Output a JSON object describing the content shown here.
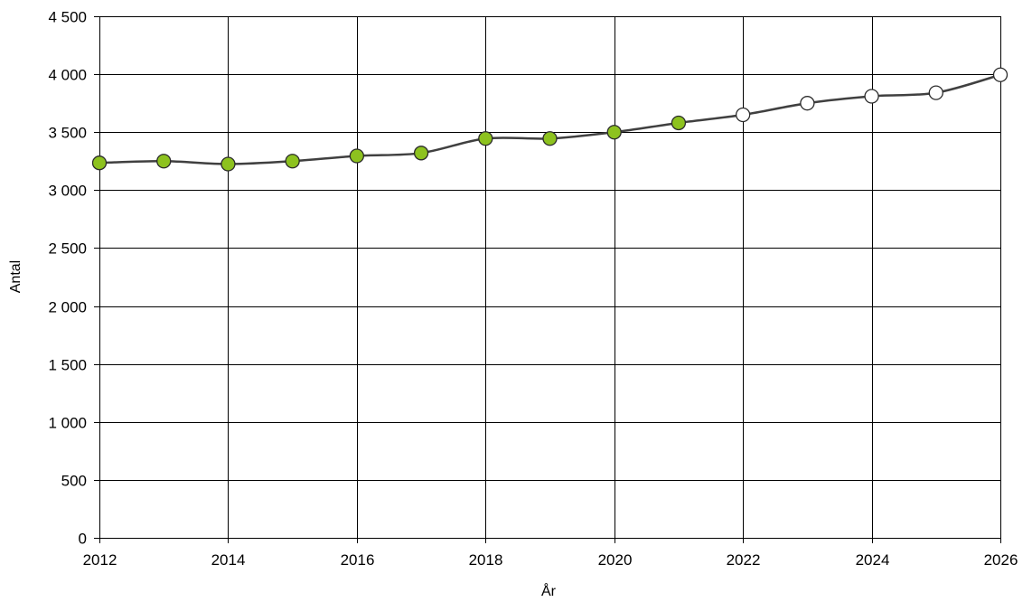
{
  "chart_data": {
    "type": "line",
    "title": "",
    "xlabel": "År",
    "ylabel": "Antal",
    "xlim": [
      2012,
      2026
    ],
    "ylim": [
      0,
      4500
    ],
    "x_ticks": [
      "2012",
      "2014",
      "2016",
      "2018",
      "2020",
      "2022",
      "2024",
      "2026"
    ],
    "y_ticks": [
      "0",
      "500",
      "1 000",
      "1 500",
      "2 000",
      "2 500",
      "3 000",
      "3 500",
      "4 000",
      "4 500"
    ],
    "grid": true,
    "legend": "none",
    "x": [
      2012,
      2013,
      2014,
      2015,
      2016,
      2017,
      2018,
      2019,
      2020,
      2021,
      2022,
      2023,
      2024,
      2025,
      2026
    ],
    "series": [
      {
        "values": [
          3235,
          3250,
          3225,
          3250,
          3295,
          3320,
          3445,
          3445,
          3500,
          3580,
          3650,
          3750,
          3810,
          3840,
          3995
        ],
        "marker_fill": [
          "#8dc21f",
          "#8dc21f",
          "#8dc21f",
          "#8dc21f",
          "#8dc21f",
          "#8dc21f",
          "#8dc21f",
          "#8dc21f",
          "#8dc21f",
          "#8dc21f",
          "#ffffff",
          "#ffffff",
          "#ffffff",
          "#ffffff",
          "#ffffff"
        ]
      }
    ],
    "colors": {
      "line": "#404040",
      "grid": "#000000",
      "historical_marker": "#8dc21f",
      "forecast_marker": "#ffffff",
      "marker_edge": "#2b2b2b"
    }
  }
}
